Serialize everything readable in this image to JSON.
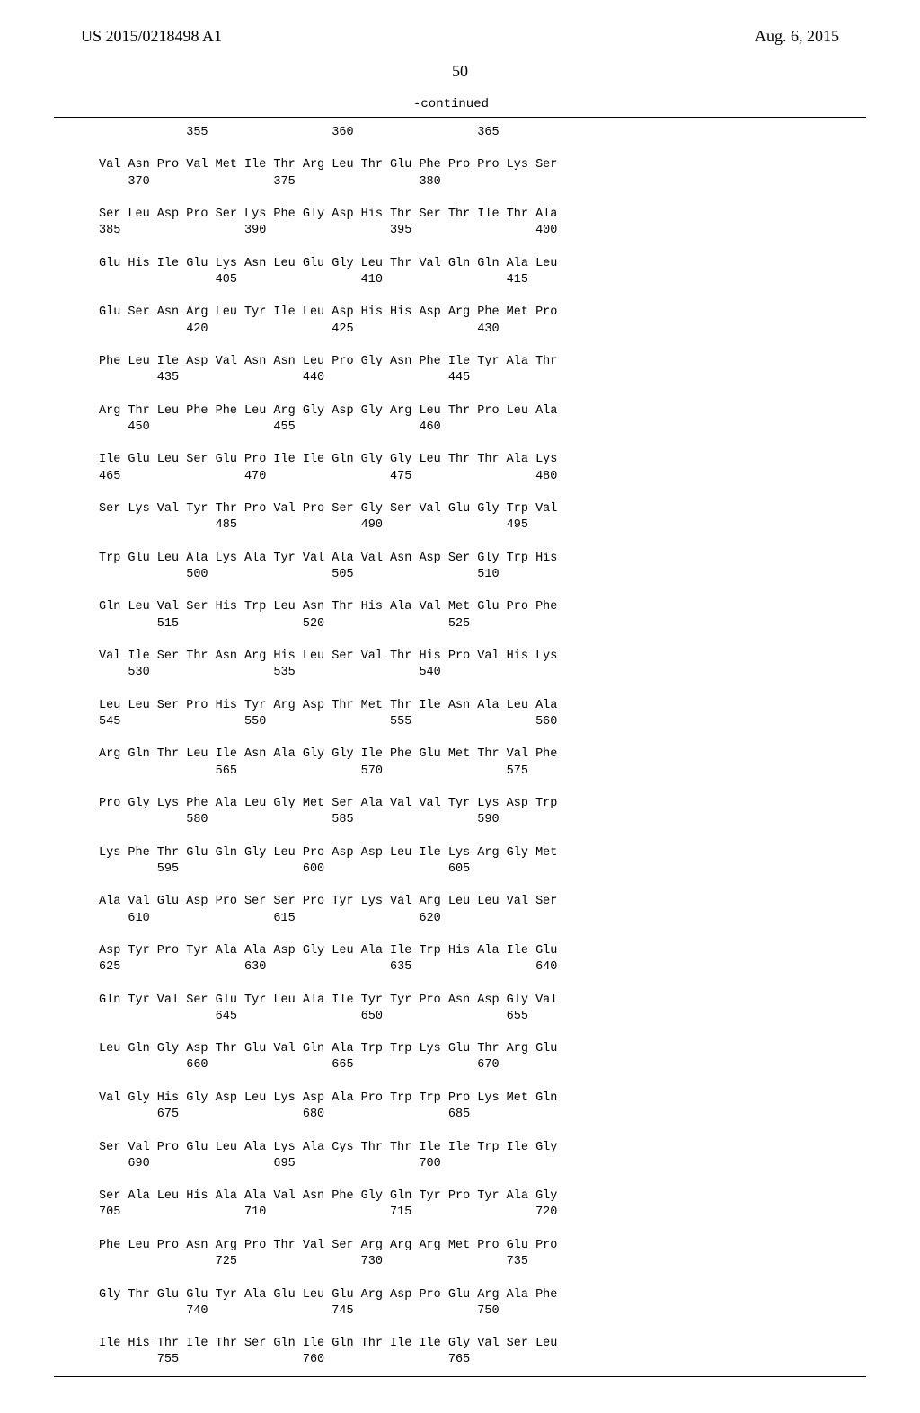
{
  "header": {
    "pubNumber": "US 2015/0218498 A1",
    "pubDate": "Aug. 6, 2015"
  },
  "pageNumber": "50",
  "continuedLabel": "-continued",
  "sequence": [
    "            355                 360                 365",
    "",
    "Val Asn Pro Val Met Ile Thr Arg Leu Thr Glu Phe Pro Pro Lys Ser",
    "    370                 375                 380",
    "",
    "Ser Leu Asp Pro Ser Lys Phe Gly Asp His Thr Ser Thr Ile Thr Ala",
    "385                 390                 395                 400",
    "",
    "Glu His Ile Glu Lys Asn Leu Glu Gly Leu Thr Val Gln Gln Ala Leu",
    "                405                 410                 415",
    "",
    "Glu Ser Asn Arg Leu Tyr Ile Leu Asp His His Asp Arg Phe Met Pro",
    "            420                 425                 430",
    "",
    "Phe Leu Ile Asp Val Asn Asn Leu Pro Gly Asn Phe Ile Tyr Ala Thr",
    "        435                 440                 445",
    "",
    "Arg Thr Leu Phe Phe Leu Arg Gly Asp Gly Arg Leu Thr Pro Leu Ala",
    "    450                 455                 460",
    "",
    "Ile Glu Leu Ser Glu Pro Ile Ile Gln Gly Gly Leu Thr Thr Ala Lys",
    "465                 470                 475                 480",
    "",
    "Ser Lys Val Tyr Thr Pro Val Pro Ser Gly Ser Val Glu Gly Trp Val",
    "                485                 490                 495",
    "",
    "Trp Glu Leu Ala Lys Ala Tyr Val Ala Val Asn Asp Ser Gly Trp His",
    "            500                 505                 510",
    "",
    "Gln Leu Val Ser His Trp Leu Asn Thr His Ala Val Met Glu Pro Phe",
    "        515                 520                 525",
    "",
    "Val Ile Ser Thr Asn Arg His Leu Ser Val Thr His Pro Val His Lys",
    "    530                 535                 540",
    "",
    "Leu Leu Ser Pro His Tyr Arg Asp Thr Met Thr Ile Asn Ala Leu Ala",
    "545                 550                 555                 560",
    "",
    "Arg Gln Thr Leu Ile Asn Ala Gly Gly Ile Phe Glu Met Thr Val Phe",
    "                565                 570                 575",
    "",
    "Pro Gly Lys Phe Ala Leu Gly Met Ser Ala Val Val Tyr Lys Asp Trp",
    "            580                 585                 590",
    "",
    "Lys Phe Thr Glu Gln Gly Leu Pro Asp Asp Leu Ile Lys Arg Gly Met",
    "        595                 600                 605",
    "",
    "Ala Val Glu Asp Pro Ser Ser Pro Tyr Lys Val Arg Leu Leu Val Ser",
    "    610                 615                 620",
    "",
    "Asp Tyr Pro Tyr Ala Ala Asp Gly Leu Ala Ile Trp His Ala Ile Glu",
    "625                 630                 635                 640",
    "",
    "Gln Tyr Val Ser Glu Tyr Leu Ala Ile Tyr Tyr Pro Asn Asp Gly Val",
    "                645                 650                 655",
    "",
    "Leu Gln Gly Asp Thr Glu Val Gln Ala Trp Trp Lys Glu Thr Arg Glu",
    "            660                 665                 670",
    "",
    "Val Gly His Gly Asp Leu Lys Asp Ala Pro Trp Trp Pro Lys Met Gln",
    "        675                 680                 685",
    "",
    "Ser Val Pro Glu Leu Ala Lys Ala Cys Thr Thr Ile Ile Trp Ile Gly",
    "    690                 695                 700",
    "",
    "Ser Ala Leu His Ala Ala Val Asn Phe Gly Gln Tyr Pro Tyr Ala Gly",
    "705                 710                 715                 720",
    "",
    "Phe Leu Pro Asn Arg Pro Thr Val Ser Arg Arg Arg Met Pro Glu Pro",
    "                725                 730                 735",
    "",
    "Gly Thr Glu Glu Tyr Ala Glu Leu Glu Arg Asp Pro Glu Arg Ala Phe",
    "            740                 745                 750",
    "",
    "Ile His Thr Ile Thr Ser Gln Ile Gln Thr Ile Ile Gly Val Ser Leu",
    "        755                 760                 765"
  ]
}
